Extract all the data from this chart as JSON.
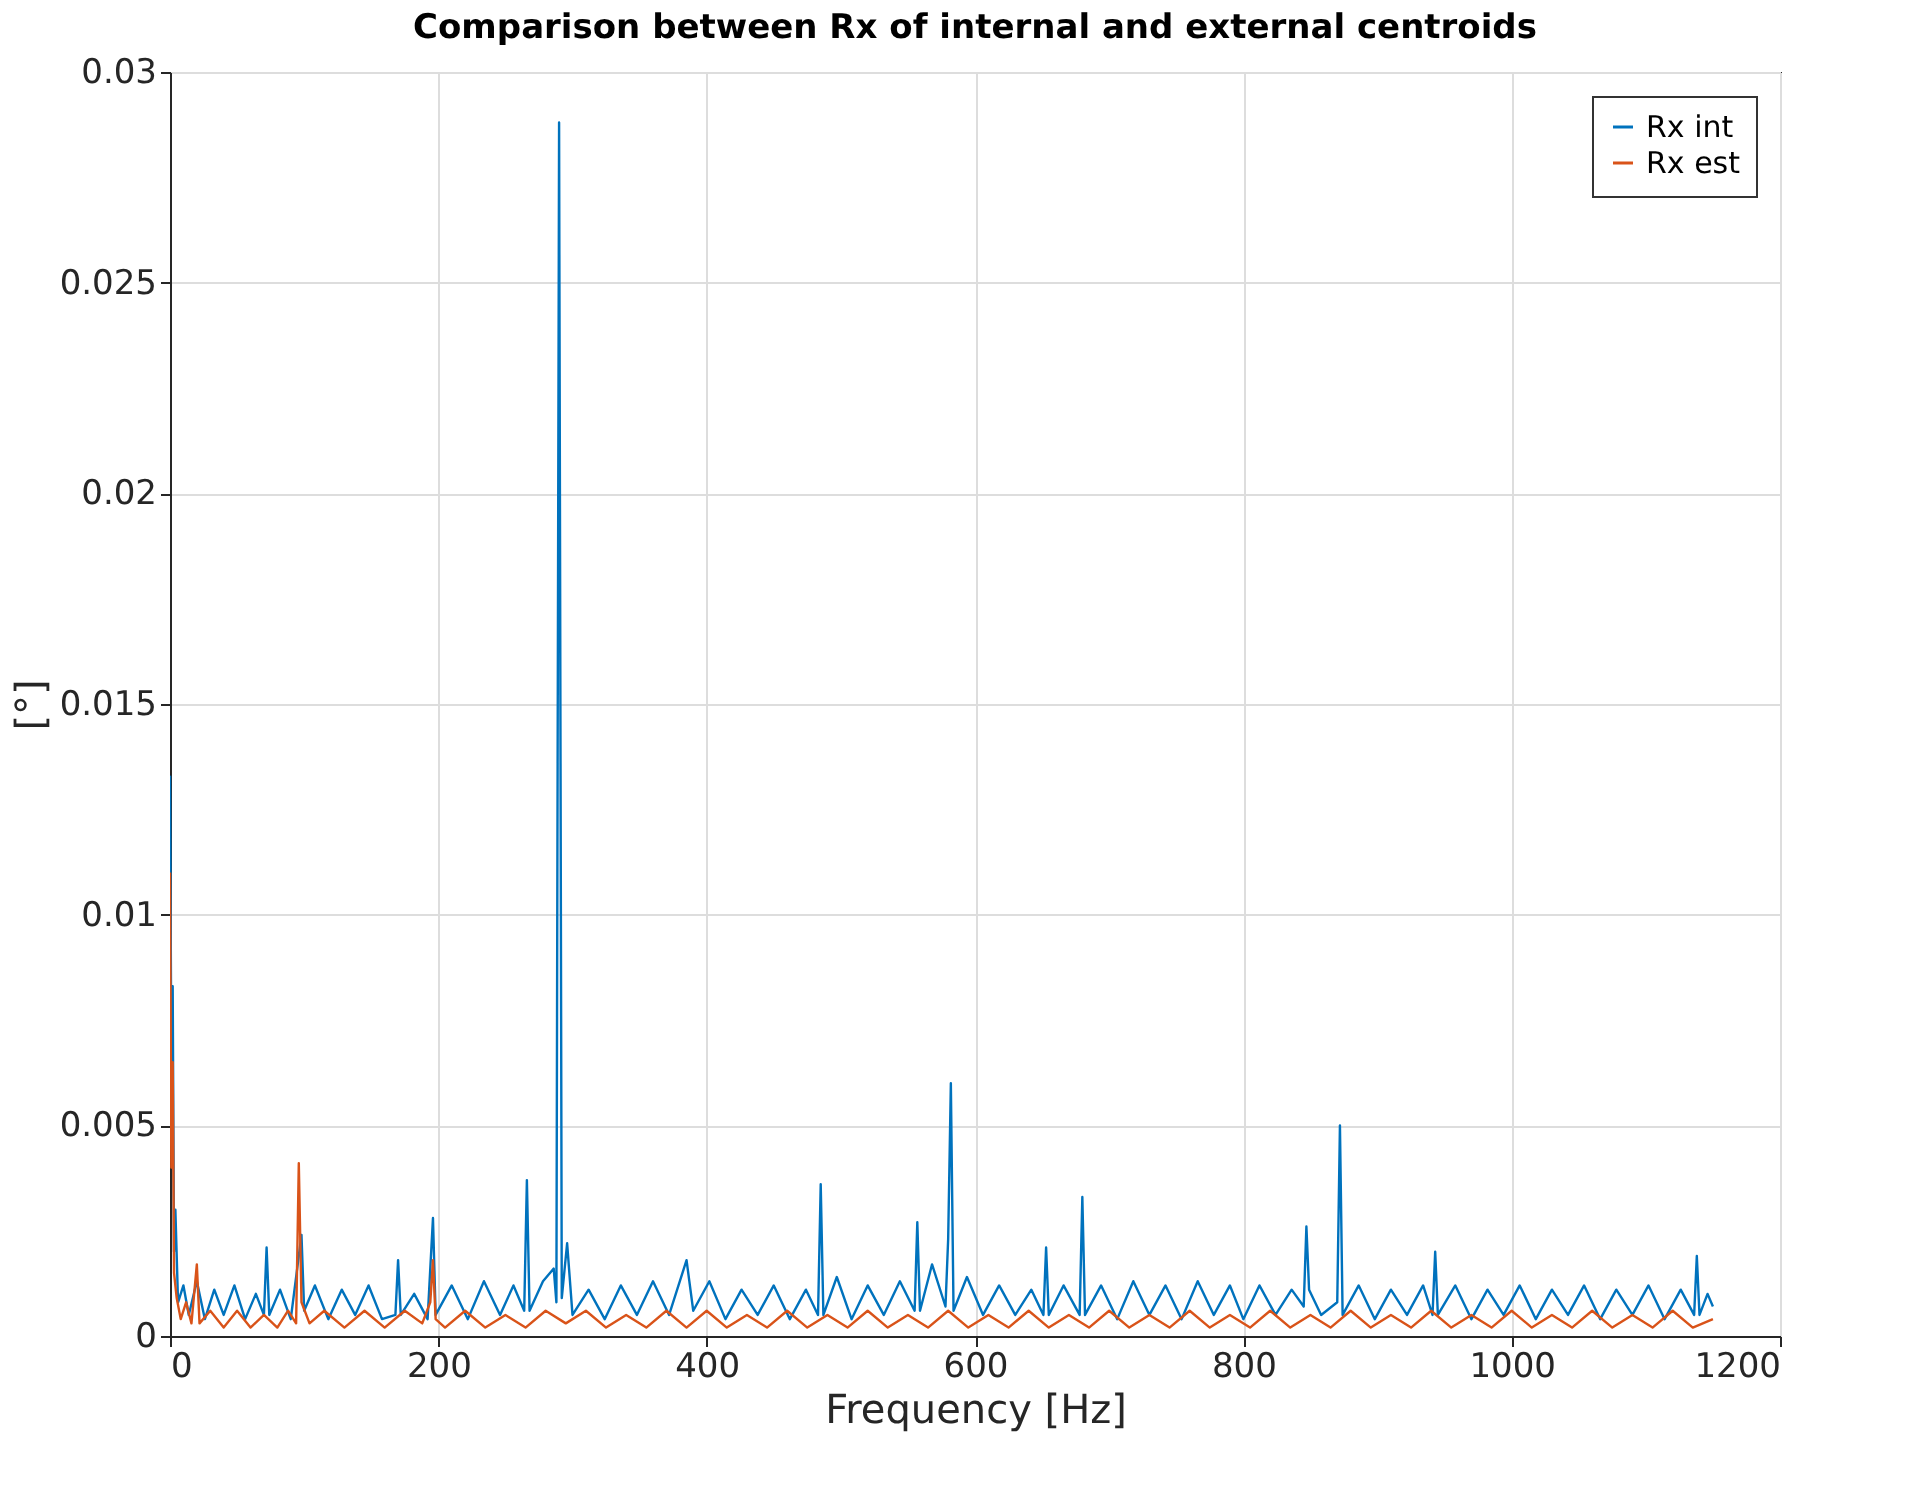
{
  "chart_data": {
    "type": "line",
    "title": "Comparison between Rx of internal and external centroids",
    "xlabel": "Frequency [Hz]",
    "ylabel": "[°]",
    "xlim": [
      0,
      1200
    ],
    "xticks": [
      0,
      200,
      400,
      600,
      800,
      1000,
      1200
    ],
    "ylim": [
      0,
      0.03
    ],
    "yticks": [
      0,
      0.005,
      0.01,
      0.015,
      0.02,
      0.025,
      0.03
    ],
    "grid": true,
    "legend": "top right",
    "line_style": "solid",
    "marker": "none",
    "series": [
      {
        "name": "Rx int",
        "color": "#0072bd",
        "x": [
          0,
          1,
          2,
          3,
          4,
          6,
          10,
          14,
          20,
          26,
          33,
          40,
          48,
          56,
          64,
          70,
          72,
          74,
          82,
          90,
          98,
          100,
          108,
          118,
          128,
          138,
          148,
          158,
          168,
          170,
          172,
          182,
          192,
          196,
          198,
          210,
          222,
          234,
          246,
          256,
          264,
          266,
          268,
          278,
          286,
          288,
          290,
          292,
          296,
          300,
          312,
          324,
          336,
          348,
          360,
          372,
          385,
          390,
          402,
          414,
          426,
          438,
          450,
          462,
          474,
          483,
          485,
          487,
          497,
          508,
          520,
          532,
          544,
          555,
          557,
          559,
          568,
          578,
          580,
          582,
          584,
          594,
          606,
          618,
          630,
          642,
          651,
          653,
          655,
          666,
          678,
          680,
          682,
          694,
          706,
          718,
          730,
          742,
          754,
          766,
          778,
          790,
          800,
          812,
          824,
          836,
          845,
          847,
          849,
          858,
          870,
          872,
          874,
          886,
          898,
          910,
          922,
          934,
          941,
          943,
          945,
          958,
          970,
          982,
          994,
          1006,
          1018,
          1030,
          1042,
          1054,
          1066,
          1078,
          1090,
          1102,
          1114,
          1126,
          1136,
          1138,
          1140,
          1146,
          1150
        ],
        "values": [
          0.0133,
          0.0065,
          0.0083,
          0.002,
          0.003,
          0.0008,
          0.0012,
          0.0005,
          0.0013,
          0.0004,
          0.0011,
          0.0005,
          0.0012,
          0.0004,
          0.001,
          0.0005,
          0.0021,
          0.0005,
          0.0011,
          0.0004,
          0.0024,
          0.0006,
          0.0012,
          0.0004,
          0.0011,
          0.0005,
          0.0012,
          0.0004,
          0.0005,
          0.0018,
          0.0005,
          0.001,
          0.0004,
          0.0028,
          0.0005,
          0.0012,
          0.0004,
          0.0013,
          0.0005,
          0.0012,
          0.0006,
          0.0037,
          0.0006,
          0.0013,
          0.0016,
          0.0008,
          0.0288,
          0.0009,
          0.0022,
          0.0005,
          0.0011,
          0.0004,
          0.0012,
          0.0005,
          0.0013,
          0.0005,
          0.0018,
          0.0006,
          0.0013,
          0.0004,
          0.0011,
          0.0005,
          0.0012,
          0.0004,
          0.0011,
          0.0005,
          0.0036,
          0.0005,
          0.0014,
          0.0004,
          0.0012,
          0.0005,
          0.0013,
          0.0006,
          0.0027,
          0.0006,
          0.0017,
          0.0007,
          0.0023,
          0.006,
          0.0006,
          0.0014,
          0.0005,
          0.0012,
          0.0005,
          0.0011,
          0.0005,
          0.0021,
          0.0005,
          0.0012,
          0.0005,
          0.0033,
          0.0005,
          0.0012,
          0.0004,
          0.0013,
          0.0005,
          0.0012,
          0.0004,
          0.0013,
          0.0005,
          0.0012,
          0.0004,
          0.0012,
          0.0005,
          0.0011,
          0.0007,
          0.0026,
          0.0011,
          0.0005,
          0.0008,
          0.005,
          0.0005,
          0.0012,
          0.0004,
          0.0011,
          0.0005,
          0.0012,
          0.0005,
          0.002,
          0.0005,
          0.0012,
          0.0004,
          0.0011,
          0.0005,
          0.0012,
          0.0004,
          0.0011,
          0.0005,
          0.0012,
          0.0004,
          0.0011,
          0.0005,
          0.0012,
          0.0004,
          0.0011,
          0.0005,
          0.0019,
          0.0005,
          0.001,
          0.0007
        ]
      },
      {
        "name": "Rx est",
        "color": "#d95319",
        "x": [
          0,
          1,
          2,
          3,
          5,
          8,
          12,
          16,
          20,
          22,
          30,
          40,
          50,
          60,
          70,
          80,
          88,
          94,
          96,
          98,
          104,
          115,
          130,
          145,
          160,
          175,
          188,
          194,
          196,
          198,
          205,
          220,
          235,
          250,
          265,
          280,
          295,
          310,
          325,
          340,
          355,
          370,
          385,
          400,
          415,
          430,
          445,
          460,
          475,
          490,
          505,
          520,
          535,
          550,
          565,
          580,
          595,
          610,
          625,
          640,
          655,
          670,
          685,
          700,
          715,
          730,
          745,
          760,
          775,
          790,
          805,
          820,
          835,
          850,
          865,
          880,
          895,
          910,
          925,
          940,
          955,
          970,
          985,
          1000,
          1015,
          1030,
          1045,
          1060,
          1075,
          1090,
          1105,
          1120,
          1135,
          1150
        ],
        "values": [
          0.011,
          0.004,
          0.0065,
          0.0015,
          0.0009,
          0.0004,
          0.0008,
          0.0003,
          0.0017,
          0.0003,
          0.0006,
          0.0002,
          0.0006,
          0.0002,
          0.0005,
          0.0002,
          0.0006,
          0.0003,
          0.0041,
          0.0008,
          0.0003,
          0.0006,
          0.0002,
          0.0006,
          0.0002,
          0.0006,
          0.0003,
          0.0008,
          0.0018,
          0.0004,
          0.0002,
          0.0006,
          0.0002,
          0.0005,
          0.0002,
          0.0006,
          0.0003,
          0.0006,
          0.0002,
          0.0005,
          0.0002,
          0.0006,
          0.0002,
          0.0006,
          0.0002,
          0.0005,
          0.0002,
          0.0006,
          0.0002,
          0.0005,
          0.0002,
          0.0006,
          0.0002,
          0.0005,
          0.0002,
          0.0006,
          0.0002,
          0.0005,
          0.0002,
          0.0006,
          0.0002,
          0.0005,
          0.0002,
          0.0006,
          0.0002,
          0.0005,
          0.0002,
          0.0006,
          0.0002,
          0.0005,
          0.0002,
          0.0006,
          0.0002,
          0.0005,
          0.0002,
          0.0006,
          0.0002,
          0.0005,
          0.0002,
          0.0006,
          0.0002,
          0.0005,
          0.0002,
          0.0006,
          0.0002,
          0.0005,
          0.0002,
          0.0006,
          0.0002,
          0.0005,
          0.0002,
          0.0006,
          0.0002,
          0.0004
        ]
      }
    ]
  }
}
